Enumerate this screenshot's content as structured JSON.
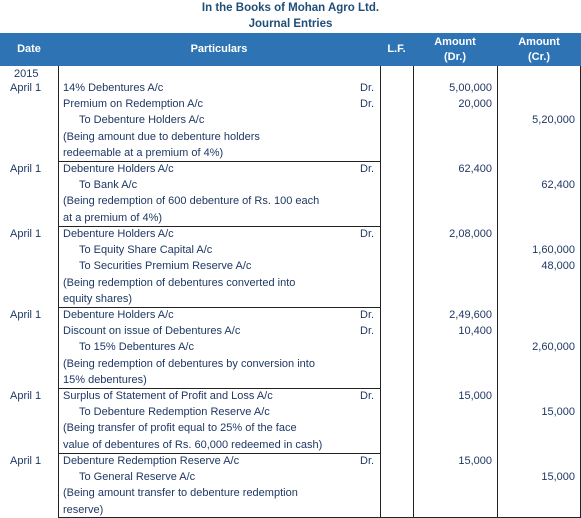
{
  "header": {
    "title_line1": "In the Books of Mohan Agro Ltd.",
    "title_line2": "Journal Entries"
  },
  "columns": {
    "date": "Date",
    "particulars": "Particulars",
    "lf": "L.F.",
    "amount_dr_line1": "Amount",
    "amount_dr_line2": "(Dr.)",
    "amount_cr_line1": "Amount",
    "amount_cr_line2": "(Cr.)"
  },
  "year": "2015",
  "entries": [
    {
      "date": "April 1",
      "lines": [
        {
          "text": "14% Debentures A/c",
          "drcr": "Dr.",
          "dr": "5,00,000",
          "cr": ""
        },
        {
          "text": "Premium on Redemption A/c",
          "drcr": "Dr.",
          "dr": "20,000",
          "cr": ""
        },
        {
          "text": "To Debenture Holders A/c",
          "drcr": "",
          "dr": "",
          "cr": "5,20,000"
        },
        {
          "text": "(Being amount due to debenture holders",
          "drcr": "",
          "dr": "",
          "cr": ""
        },
        {
          "text": "redeemable at a premium of 4%)",
          "drcr": "",
          "dr": "",
          "cr": ""
        }
      ]
    },
    {
      "date": "April 1",
      "lines": [
        {
          "text": "Debenture Holders A/c",
          "drcr": "Dr.",
          "dr": "62,400",
          "cr": ""
        },
        {
          "text": "To Bank A/c",
          "drcr": "",
          "dr": "",
          "cr": "62,400"
        },
        {
          "text": "(Being redemption of 600 debenture of Rs. 100 each",
          "drcr": "",
          "dr": "",
          "cr": ""
        },
        {
          "text": "at a premium of 4%)",
          "drcr": "",
          "dr": "",
          "cr": ""
        }
      ]
    },
    {
      "date": "April 1",
      "lines": [
        {
          "text": "Debenture Holders A/c",
          "drcr": "Dr.",
          "dr": "2,08,000",
          "cr": ""
        },
        {
          "text": "To Equity Share Capital A/c",
          "drcr": "",
          "dr": "",
          "cr": "1,60,000"
        },
        {
          "text": "To Securities Premium Reserve A/c",
          "drcr": "",
          "dr": "",
          "cr": "48,000"
        },
        {
          "text": "(Being redemption of debentures converted into",
          "drcr": "",
          "dr": "",
          "cr": ""
        },
        {
          "text": "equity shares)",
          "drcr": "",
          "dr": "",
          "cr": ""
        }
      ]
    },
    {
      "date": "April 1",
      "lines": [
        {
          "text": "Debenture Holders A/c",
          "drcr": "Dr.",
          "dr": "2,49,600",
          "cr": ""
        },
        {
          "text": "Discount on issue of Debentures A/c",
          "drcr": "Dr.",
          "dr": "10,400",
          "cr": ""
        },
        {
          "text": "To 15% Debentures A/c",
          "drcr": "",
          "dr": "",
          "cr": "2,60,000"
        },
        {
          "text": "(Being redemption of debentures by conversion into",
          "drcr": "",
          "dr": "",
          "cr": ""
        },
        {
          "text": "15% debentures)",
          "drcr": "",
          "dr": "",
          "cr": ""
        }
      ]
    },
    {
      "date": "April 1",
      "lines": [
        {
          "text": "Surplus of Statement of Profit and Loss A/c",
          "drcr": "Dr.",
          "dr": "15,000",
          "cr": ""
        },
        {
          "text": "To Debenture Redemption Reserve A/c",
          "drcr": "",
          "dr": "",
          "cr": "15,000"
        },
        {
          "text": "(Being transfer of profit equal to 25% of the face",
          "drcr": "",
          "dr": "",
          "cr": ""
        },
        {
          "text": "value of debentures of Rs. 60,000 redeemed in cash)",
          "drcr": "",
          "dr": "",
          "cr": ""
        }
      ]
    },
    {
      "date": "April 1",
      "lines": [
        {
          "text": "Debenture Redemption Reserve A/c",
          "drcr": "Dr.",
          "dr": "15,000",
          "cr": ""
        },
        {
          "text": "To General Reserve A/c",
          "drcr": "",
          "dr": "",
          "cr": "15,000"
        },
        {
          "text": "(Being amount transfer to debenture redemption",
          "drcr": "",
          "dr": "",
          "cr": ""
        },
        {
          "text": "reserve)",
          "drcr": "",
          "dr": "",
          "cr": ""
        }
      ]
    }
  ]
}
